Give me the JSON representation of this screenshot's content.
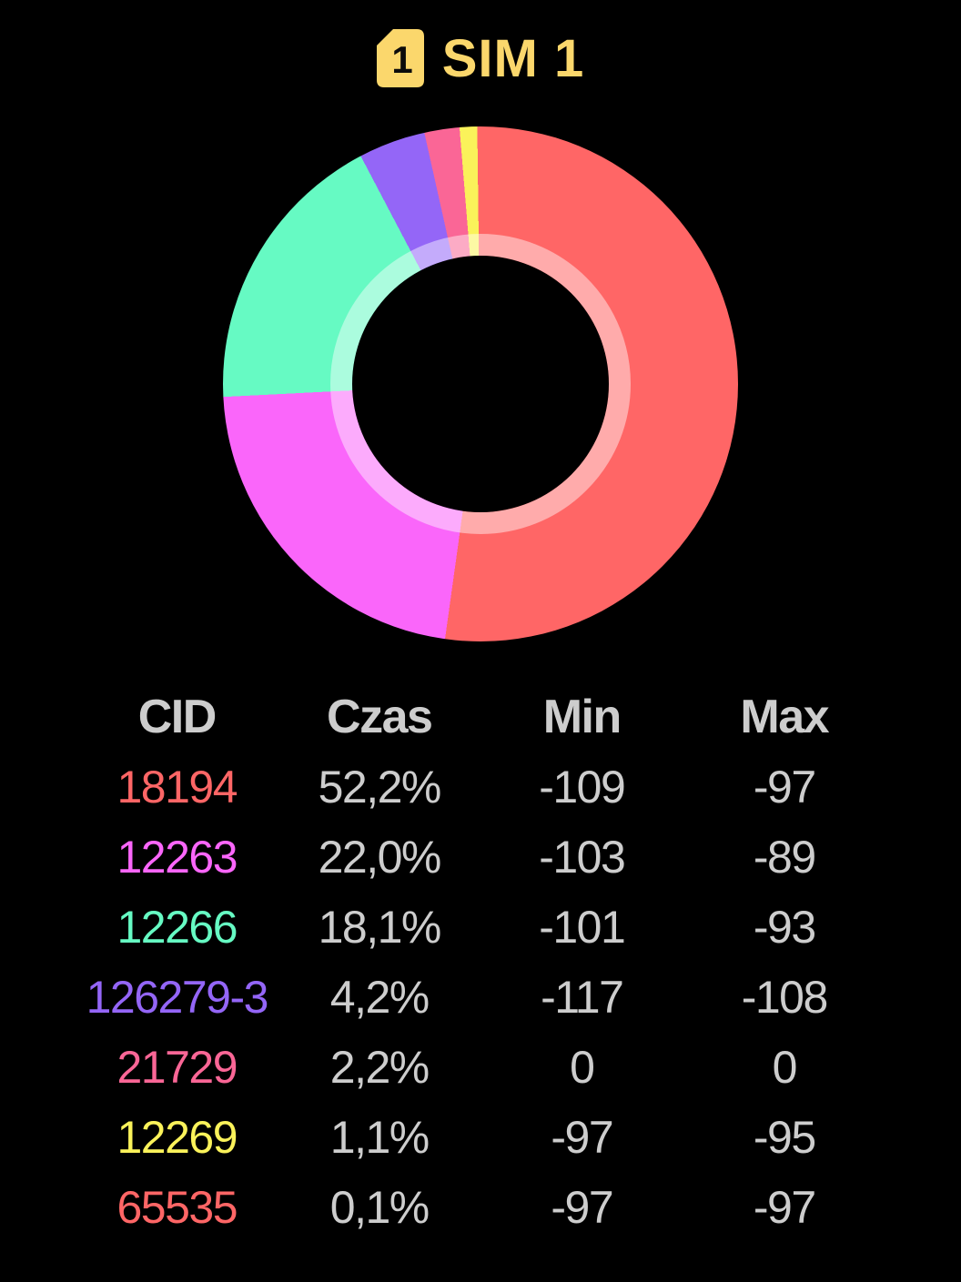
{
  "header": {
    "title": "SIM 1",
    "icon_digit": "1",
    "icon_color": "#FBD76C",
    "title_color": "#FBD76C"
  },
  "chart_data": {
    "type": "pie",
    "subtype": "donut",
    "title": "SIM 1",
    "categories": [
      "18194",
      "12263",
      "12266",
      "126279-3",
      "21729",
      "12269",
      "65535"
    ],
    "values": [
      52.2,
      22.0,
      18.1,
      4.2,
      2.2,
      1.1,
      0.1
    ],
    "colors": [
      "#FF6666",
      "#FA66FA",
      "#66FAC3",
      "#9466F7",
      "#FA6696",
      "#FAF25A",
      "#FF6666"
    ],
    "start_angle_deg": 0,
    "direction": "clockwise",
    "hole_color": "#000000",
    "inner_ring_color": "rgba(255,255,255,0.45)",
    "legend_position": "none"
  },
  "table": {
    "columns": [
      "CID",
      "Czas",
      "Min",
      "Max"
    ],
    "rows": [
      {
        "cid": "18194",
        "czas": "52,2%",
        "min": "-109",
        "max": "-97",
        "color": "#FF6666"
      },
      {
        "cid": "12263",
        "czas": "22,0%",
        "min": "-103",
        "max": "-89",
        "color": "#FA66FA"
      },
      {
        "cid": "12266",
        "czas": "18,1%",
        "min": "-101",
        "max": "-93",
        "color": "#66FAC3"
      },
      {
        "cid": "126279-3",
        "czas": "4,2%",
        "min": "-117",
        "max": "-108",
        "color": "#9466F7"
      },
      {
        "cid": "21729",
        "czas": "2,2%",
        "min": "0",
        "max": "0",
        "color": "#FA6696"
      },
      {
        "cid": "12269",
        "czas": "1,1%",
        "min": "-97",
        "max": "-95",
        "color": "#FAF25A"
      },
      {
        "cid": "65535",
        "czas": "0,1%",
        "min": "-97",
        "max": "-97",
        "color": "#FF6666"
      }
    ],
    "text_color": "#CDCDCD"
  }
}
